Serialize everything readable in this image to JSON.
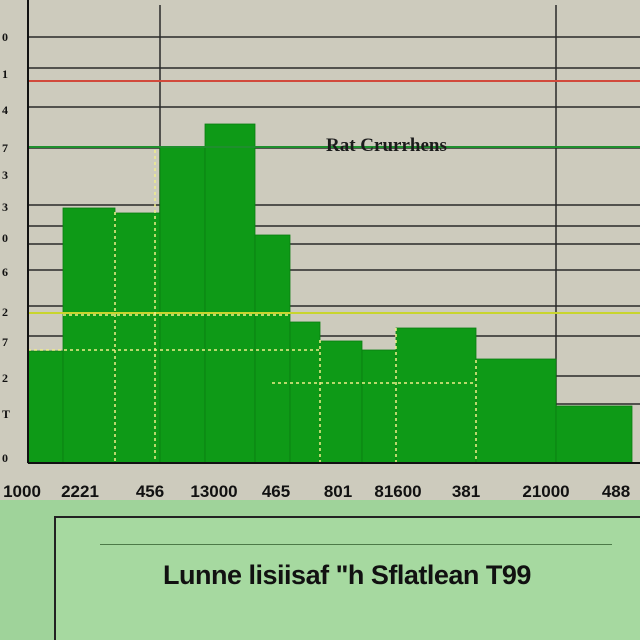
{
  "chart_data": {
    "type": "bar",
    "y_ticks": [
      "0",
      "1",
      "4",
      "7",
      "3",
      "3",
      "0",
      "6",
      "2",
      "7",
      "2",
      "T",
      "0"
    ],
    "x_ticks": [
      "1000",
      "2221",
      "456",
      "13000",
      "465",
      "801",
      "81600",
      "381",
      "21000",
      "488"
    ],
    "bars": [
      {
        "value": 112
      },
      {
        "value": 255
      },
      {
        "value": 250
      },
      {
        "value": 316
      },
      {
        "value": 339
      },
      {
        "value": 228
      },
      {
        "value": 141
      },
      {
        "value": 122
      },
      {
        "value": 113
      },
      {
        "value": 135
      },
      {
        "value": 104
      },
      {
        "value": 57
      }
    ],
    "reference_lines": [
      {
        "value": 382,
        "color": "#d14a3c"
      },
      {
        "value": 316,
        "color": "#1f8f2e"
      },
      {
        "value": 150,
        "color": "#c8d52e"
      }
    ],
    "annotation": "Rat Crurrhens",
    "ylim": [
      0,
      430
    ],
    "grid": true,
    "colors": {
      "bar": "#0e9a17",
      "grid": "#2a2a2a",
      "dash": "#f0ee8a"
    }
  },
  "footer": {
    "caption": "Lunne lisiisaf \"h Sflatlean T99"
  }
}
